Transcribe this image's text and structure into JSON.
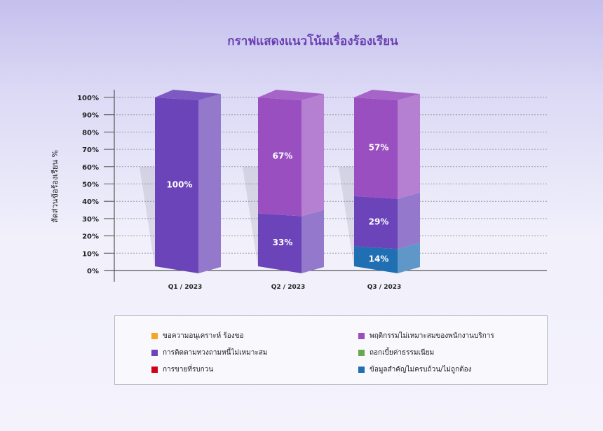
{
  "chart_data": {
    "type": "bar",
    "stacked": true,
    "title": "กราฟแสดงแนวโน้มเรื่องร้องเรียน",
    "ylabel": "สัดส่วนข้อร้องเรียน %",
    "xlabel": "",
    "ylim": [
      0,
      100
    ],
    "yticks": [
      "0%",
      "10%",
      "20%",
      "30%",
      "40%",
      "50%",
      "60%",
      "70%",
      "80%",
      "90%",
      "100%"
    ],
    "grid": true,
    "legend_position": "bottom",
    "categories": [
      "Q1 / 2023",
      "Q2 / 2023",
      "Q3 / 2023"
    ],
    "series": [
      {
        "name": "ขอความอนุเคราะห์ ร้องขอ",
        "color": "#f5a623",
        "values": [
          0,
          0,
          0
        ],
        "labels": [
          "",
          "",
          ""
        ]
      },
      {
        "name": "พฤติกรรมไม่เหมาะสมของพนักงานบริการ",
        "color": "#9a4fc0",
        "values": [
          0,
          67,
          57
        ],
        "labels": [
          "",
          "67%",
          "57%"
        ]
      },
      {
        "name": "การติดตามทวงถามหนี้ไม่เหมาะสม",
        "color": "#6a44b8",
        "values": [
          100,
          33,
          29
        ],
        "labels": [
          "100%",
          "33%",
          "29%"
        ]
      },
      {
        "name": "ถอกเบี้ยค่าธรรมเนียม",
        "color": "#6aa84f",
        "values": [
          0,
          0,
          0
        ],
        "labels": [
          "",
          "",
          ""
        ]
      },
      {
        "name": "การขายที่รบกวน",
        "color": "#d0021b",
        "values": [
          0,
          0,
          0
        ],
        "labels": [
          "",
          "",
          ""
        ]
      },
      {
        "name": "ข้อมูลสำคัญไม่ครบถ้วน/ไม่ถูกต้อง",
        "color": "#1f6fb2",
        "values": [
          0,
          0,
          14
        ],
        "labels": [
          "",
          "",
          "14%"
        ]
      }
    ],
    "stack_order": [
      5,
      2,
      1
    ]
  }
}
